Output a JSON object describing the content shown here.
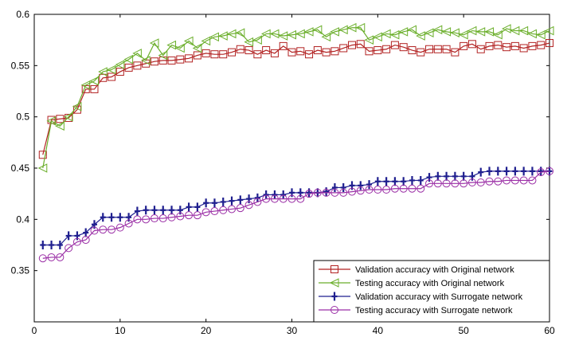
{
  "chart_data": {
    "type": "line",
    "title": "",
    "xlabel": "",
    "ylabel": "",
    "xlim": [
      0,
      60
    ],
    "ylim": [
      0.3,
      0.6
    ],
    "xticks": [
      0,
      10,
      20,
      30,
      40,
      50,
      60
    ],
    "yticks": [
      0.35,
      0.4,
      0.45,
      0.5,
      0.55,
      0.6
    ],
    "xtick_labels": [
      "0",
      "10",
      "20",
      "30",
      "40",
      "50",
      "60"
    ],
    "ytick_labels": [
      "0.35",
      "0.4",
      "0.45",
      "0.5",
      "0.55",
      "0.6"
    ],
    "grid": false,
    "legend_position": "bottom-right",
    "x": [
      1,
      2,
      3,
      4,
      5,
      6,
      7,
      8,
      9,
      10,
      11,
      12,
      13,
      14,
      15,
      16,
      17,
      18,
      19,
      20,
      21,
      22,
      23,
      24,
      25,
      26,
      27,
      28,
      29,
      30,
      31,
      32,
      33,
      34,
      35,
      36,
      37,
      38,
      39,
      40,
      41,
      42,
      43,
      44,
      45,
      46,
      47,
      48,
      49,
      50,
      51,
      52,
      53,
      54,
      55,
      56,
      57,
      58,
      59,
      60
    ],
    "series": [
      {
        "name": "Validation accuracy with Original network",
        "color": "#b22222",
        "marker": "square",
        "values": [
          0.463,
          0.497,
          0.498,
          0.499,
          0.507,
          0.527,
          0.527,
          0.538,
          0.539,
          0.544,
          0.548,
          0.55,
          0.552,
          0.554,
          0.555,
          0.555,
          0.556,
          0.557,
          0.56,
          0.562,
          0.561,
          0.561,
          0.563,
          0.566,
          0.565,
          0.561,
          0.565,
          0.562,
          0.569,
          0.563,
          0.564,
          0.561,
          0.565,
          0.563,
          0.564,
          0.567,
          0.57,
          0.571,
          0.564,
          0.565,
          0.566,
          0.57,
          0.568,
          0.565,
          0.563,
          0.566,
          0.566,
          0.566,
          0.563,
          0.569,
          0.571,
          0.566,
          0.569,
          0.57,
          0.568,
          0.569,
          0.567,
          0.569,
          0.57,
          0.572
        ]
      },
      {
        "name": "Testing accuracy with Original network",
        "color": "#6aae2a",
        "marker": "triangle-left",
        "values": [
          0.45,
          0.496,
          0.491,
          0.5,
          0.51,
          0.531,
          0.535,
          0.544,
          0.546,
          0.551,
          0.556,
          0.562,
          0.555,
          0.572,
          0.56,
          0.57,
          0.567,
          0.574,
          0.567,
          0.574,
          0.578,
          0.579,
          0.581,
          0.582,
          0.573,
          0.575,
          0.581,
          0.581,
          0.579,
          0.58,
          0.581,
          0.583,
          0.585,
          0.578,
          0.583,
          0.585,
          0.587,
          0.587,
          0.575,
          0.578,
          0.581,
          0.58,
          0.583,
          0.585,
          0.579,
          0.582,
          0.585,
          0.583,
          0.582,
          0.58,
          0.584,
          0.583,
          0.583,
          0.58,
          0.586,
          0.584,
          0.584,
          0.581,
          0.58,
          0.584
        ]
      },
      {
        "name": "Validation accuracy with Surrogate network",
        "color": "#1f1f8f",
        "marker": "plus",
        "values": [
          0.375,
          0.375,
          0.375,
          0.384,
          0.384,
          0.387,
          0.395,
          0.402,
          0.402,
          0.402,
          0.402,
          0.408,
          0.409,
          0.409,
          0.409,
          0.409,
          0.409,
          0.412,
          0.412,
          0.416,
          0.416,
          0.417,
          0.418,
          0.419,
          0.42,
          0.421,
          0.424,
          0.424,
          0.424,
          0.426,
          0.426,
          0.426,
          0.426,
          0.427,
          0.431,
          0.431,
          0.433,
          0.433,
          0.434,
          0.437,
          0.437,
          0.437,
          0.437,
          0.438,
          0.438,
          0.441,
          0.442,
          0.442,
          0.442,
          0.442,
          0.442,
          0.446,
          0.447,
          0.447,
          0.447,
          0.447,
          0.447,
          0.447,
          0.447,
          0.447
        ]
      },
      {
        "name": "Testing accuracy with Surrogate network",
        "color": "#9b2fa6",
        "marker": "circle",
        "values": [
          0.362,
          0.363,
          0.363,
          0.372,
          0.378,
          0.38,
          0.389,
          0.39,
          0.39,
          0.392,
          0.396,
          0.4,
          0.4,
          0.401,
          0.401,
          0.402,
          0.403,
          0.404,
          0.404,
          0.407,
          0.408,
          0.409,
          0.41,
          0.411,
          0.414,
          0.417,
          0.42,
          0.42,
          0.42,
          0.42,
          0.42,
          0.425,
          0.426,
          0.426,
          0.426,
          0.426,
          0.427,
          0.428,
          0.429,
          0.429,
          0.429,
          0.43,
          0.43,
          0.43,
          0.43,
          0.435,
          0.435,
          0.435,
          0.435,
          0.435,
          0.436,
          0.436,
          0.437,
          0.437,
          0.438,
          0.438,
          0.438,
          0.438,
          0.446,
          0.447
        ]
      }
    ]
  }
}
